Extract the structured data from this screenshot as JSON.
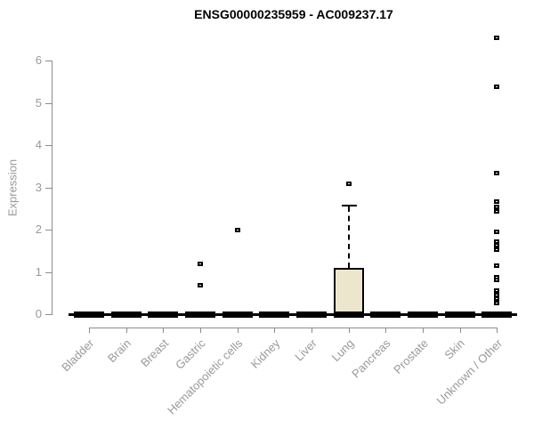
{
  "chart_data": {
    "type": "box",
    "title": "ENSG00000235959 - AC009237.17",
    "xlabel": "",
    "ylabel": "Expression",
    "ylim": [
      0,
      6.6
    ],
    "yticks": [
      0,
      1,
      2,
      3,
      4,
      5,
      6
    ],
    "grid": false,
    "legend": "none",
    "categories": [
      "Bladder",
      "Brain",
      "Breast",
      "Gastric",
      "Hematopoietic cells",
      "Kidney",
      "Liver",
      "Lung",
      "Pancreas",
      "Prostate",
      "Skin",
      "Unknown / Other"
    ],
    "series": [
      {
        "category": "Bladder",
        "whisker_low": 0,
        "q1": 0,
        "median": 0,
        "q3": 0,
        "whisker_high": 0,
        "outliers": []
      },
      {
        "category": "Brain",
        "whisker_low": 0,
        "q1": 0,
        "median": 0,
        "q3": 0,
        "whisker_high": 0,
        "outliers": []
      },
      {
        "category": "Breast",
        "whisker_low": 0,
        "q1": 0,
        "median": 0,
        "q3": 0,
        "whisker_high": 0,
        "outliers": []
      },
      {
        "category": "Gastric",
        "whisker_low": 0,
        "q1": 0,
        "median": 0,
        "q3": 0,
        "whisker_high": 0,
        "outliers": [
          1.2,
          0.7
        ]
      },
      {
        "category": "Hematopoietic cells",
        "whisker_low": 0,
        "q1": 0,
        "median": 0,
        "q3": 0,
        "whisker_high": 0,
        "outliers": [
          2.0
        ]
      },
      {
        "category": "Kidney",
        "whisker_low": 0,
        "q1": 0,
        "median": 0,
        "q3": 0,
        "whisker_high": 0,
        "outliers": []
      },
      {
        "category": "Liver",
        "whisker_low": 0,
        "q1": 0,
        "median": 0,
        "q3": 0,
        "whisker_high": 0,
        "outliers": []
      },
      {
        "category": "Lung",
        "whisker_low": 0,
        "q1": 0,
        "median": 0,
        "q3": 1.1,
        "whisker_high": 2.6,
        "outliers": [
          3.1
        ]
      },
      {
        "category": "Pancreas",
        "whisker_low": 0,
        "q1": 0,
        "median": 0,
        "q3": 0,
        "whisker_high": 0,
        "outliers": []
      },
      {
        "category": "Prostate",
        "whisker_low": 0,
        "q1": 0,
        "median": 0,
        "q3": 0,
        "whisker_high": 0,
        "outliers": []
      },
      {
        "category": "Skin",
        "whisker_low": 0,
        "q1": 0,
        "median": 0,
        "q3": 0,
        "whisker_high": 0,
        "outliers": []
      },
      {
        "category": "Unknown / Other",
        "whisker_low": 0,
        "q1": 0,
        "median": 0,
        "q3": 0,
        "whisker_high": 0,
        "outliers": [
          6.55,
          5.4,
          3.35,
          2.67,
          2.55,
          2.44,
          1.96,
          1.73,
          1.64,
          1.53,
          1.16,
          0.88,
          0.82,
          0.56,
          0.47,
          0.38,
          0.28
        ]
      }
    ],
    "colors": {
      "box_fill": "#ece6cc",
      "box_stroke": "#000000",
      "axis_line": "#8c8c8c",
      "axis_text": "#999999",
      "title_text": "#000000"
    }
  }
}
